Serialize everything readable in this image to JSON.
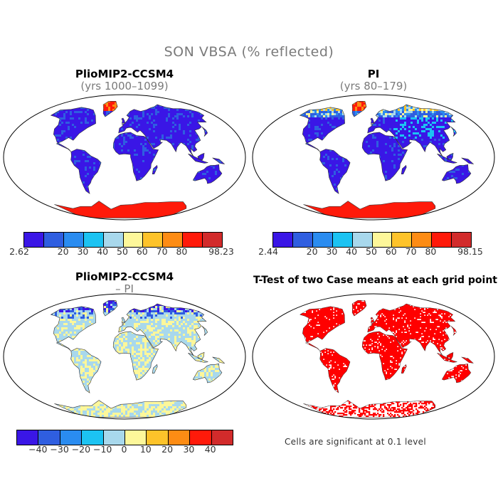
{
  "figure": {
    "title": "SON VBSA (% reflected)",
    "note": "Cells are significant at 0.1 level"
  },
  "panels": [
    {
      "title": "PlioMIP2-CCSM4",
      "subtitle": "(yrs 1000–1099)"
    },
    {
      "title": "PI",
      "subtitle": "(yrs 80–179)"
    },
    {
      "title": "PlioMIP2-CCSM4",
      "subtitle": "– PI"
    },
    {
      "title": "T-Test of two Case means at each grid point",
      "subtitle": ""
    }
  ],
  "colorbars": [
    {
      "min_label": "2.62",
      "ticks": [
        "20",
        "30",
        "40",
        "50",
        "60",
        "70",
        "80"
      ],
      "max_label": "98.23"
    },
    {
      "min_label": "2.44",
      "ticks": [
        "20",
        "30",
        "40",
        "50",
        "60",
        "70",
        "80"
      ],
      "max_label": "98.15"
    },
    {
      "ticks": [
        "−40",
        "−30",
        "−20",
        "−10",
        "0",
        "10",
        "20",
        "30",
        "40"
      ]
    }
  ],
  "colors": {
    "abs_scale": [
      "#3a16e6",
      "#2f5ee0",
      "#2a8cf0",
      "#1cc3f2",
      "#a8d8ec",
      "#fdf79a",
      "#fdc32a",
      "#fd8c14",
      "#ff1a0a",
      "#d22b2b"
    ],
    "diff_scale": [
      "#3a16e6",
      "#2f5ee0",
      "#2a8cf0",
      "#1cc3f2",
      "#a8d8ec",
      "#fdf79a",
      "#fdc32a",
      "#fd8c14",
      "#ff1a0a",
      "#d22b2b"
    ],
    "significant": "#ff0000"
  },
  "chart_data": {
    "type": "heatmap",
    "title": "SON VBSA (% reflected)",
    "maps": [
      {
        "panel": "PlioMIP2-CCSM4 (yrs 1000–1099)",
        "range": [
          2.62,
          98.23
        ],
        "levels": [
          20,
          30,
          40,
          50,
          60,
          70,
          80
        ]
      },
      {
        "panel": "PI (yrs 80–179)",
        "range": [
          2.44,
          98.15
        ],
        "levels": [
          20,
          30,
          40,
          50,
          60,
          70,
          80
        ]
      },
      {
        "panel": "PlioMIP2-CCSM4 – PI",
        "levels": [
          -40,
          -30,
          -20,
          -10,
          0,
          10,
          20,
          30,
          40
        ]
      },
      {
        "panel": "T-Test of two Case means at each grid point",
        "significance_level": 0.1
      }
    ]
  }
}
